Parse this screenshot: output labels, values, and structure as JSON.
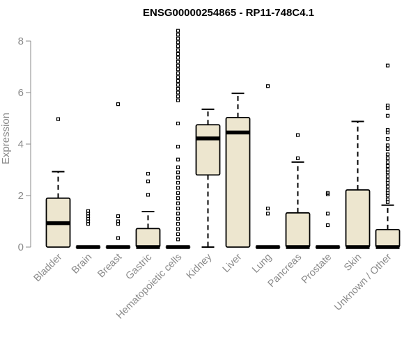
{
  "chart_data": {
    "type": "boxplot",
    "title": "ENSG00000254865 - RP11-748C4.1",
    "ylabel": "Expression",
    "xlabel": "",
    "ylim": [
      0,
      8
    ],
    "yticks": [
      0,
      2,
      4,
      6,
      8
    ],
    "grid": false,
    "colors": {
      "box_fill": "#ede6cf",
      "stroke": "#000000",
      "axis": "#8a8a8a"
    },
    "categories": [
      "Bladder",
      "Brain",
      "Breast",
      "Gastric",
      "Hematopoietic cells",
      "Kidney",
      "Liver",
      "Lung",
      "Pancreas",
      "Prostate",
      "Skin",
      "Unknown / Other"
    ],
    "boxes": [
      {
        "category": "Bladder",
        "min": 0,
        "q1": 0,
        "median": 0.93,
        "q3": 1.9,
        "max": 2.93,
        "outliers": [
          4.97
        ]
      },
      {
        "category": "Brain",
        "min": 0,
        "q1": 0,
        "median": 0,
        "q3": 0,
        "max": 0,
        "outliers": [
          0.9,
          1.0,
          1.1,
          1.2,
          1.3,
          1.4
        ]
      },
      {
        "category": "Breast",
        "min": 0,
        "q1": 0,
        "median": 0,
        "q3": 0,
        "max": 0,
        "outliers": [
          0.35,
          0.9,
          1.0,
          1.2,
          5.55
        ]
      },
      {
        "category": "Gastric",
        "min": 0,
        "q1": 0,
        "median": 0,
        "q3": 0.72,
        "max": 1.38,
        "outliers": [
          2.03,
          2.55,
          2.85
        ]
      },
      {
        "category": "Hematopoietic cells",
        "min": 0,
        "q1": 0,
        "median": 0,
        "q3": 0,
        "max": 0,
        "outliers": [
          0.3,
          0.5,
          0.7,
          0.9,
          1.1,
          1.3,
          1.5,
          1.7,
          1.9,
          2.1,
          2.3,
          2.5,
          2.7,
          2.9,
          3.1,
          3.4,
          3.9,
          4.8,
          5.7,
          5.85,
          6.0,
          6.15,
          6.3,
          6.45,
          6.6,
          6.75,
          6.9,
          7.05,
          7.2,
          7.35,
          7.5,
          7.65,
          7.8,
          7.95,
          8.1,
          8.25,
          8.4
        ]
      },
      {
        "category": "Kidney",
        "min": 0,
        "q1": 2.8,
        "median": 4.22,
        "q3": 4.75,
        "max": 5.35,
        "outliers": []
      },
      {
        "category": "Liver",
        "min": 0,
        "q1": 0,
        "median": 4.45,
        "q3": 5.03,
        "max": 5.97,
        "outliers": []
      },
      {
        "category": "Lung",
        "min": 0,
        "q1": 0,
        "median": 0,
        "q3": 0,
        "max": 0,
        "outliers": [
          1.3,
          1.5,
          6.25
        ]
      },
      {
        "category": "Pancreas",
        "min": 0,
        "q1": 0,
        "median": 0,
        "q3": 1.33,
        "max": 3.3,
        "outliers": [
          3.45,
          4.35
        ]
      },
      {
        "category": "Prostate",
        "min": 0,
        "q1": 0,
        "median": 0,
        "q3": 0,
        "max": 0,
        "outliers": [
          0.85,
          1.3,
          2.05,
          2.1
        ]
      },
      {
        "category": "Skin",
        "min": 0,
        "q1": 0,
        "median": 0,
        "q3": 2.22,
        "max": 4.88,
        "outliers": []
      },
      {
        "category": "Unknown / Other",
        "min": 0,
        "q1": 0,
        "median": 0,
        "q3": 0.68,
        "max": 1.63,
        "outliers": [
          1.75,
          1.85,
          2.0,
          2.1,
          2.2,
          2.35,
          2.5,
          2.6,
          2.75,
          2.9,
          3.0,
          3.15,
          3.3,
          3.45,
          3.6,
          3.8,
          3.95,
          4.2,
          4.45,
          4.55,
          5.1,
          5.4,
          5.5,
          7.05
        ]
      }
    ]
  }
}
